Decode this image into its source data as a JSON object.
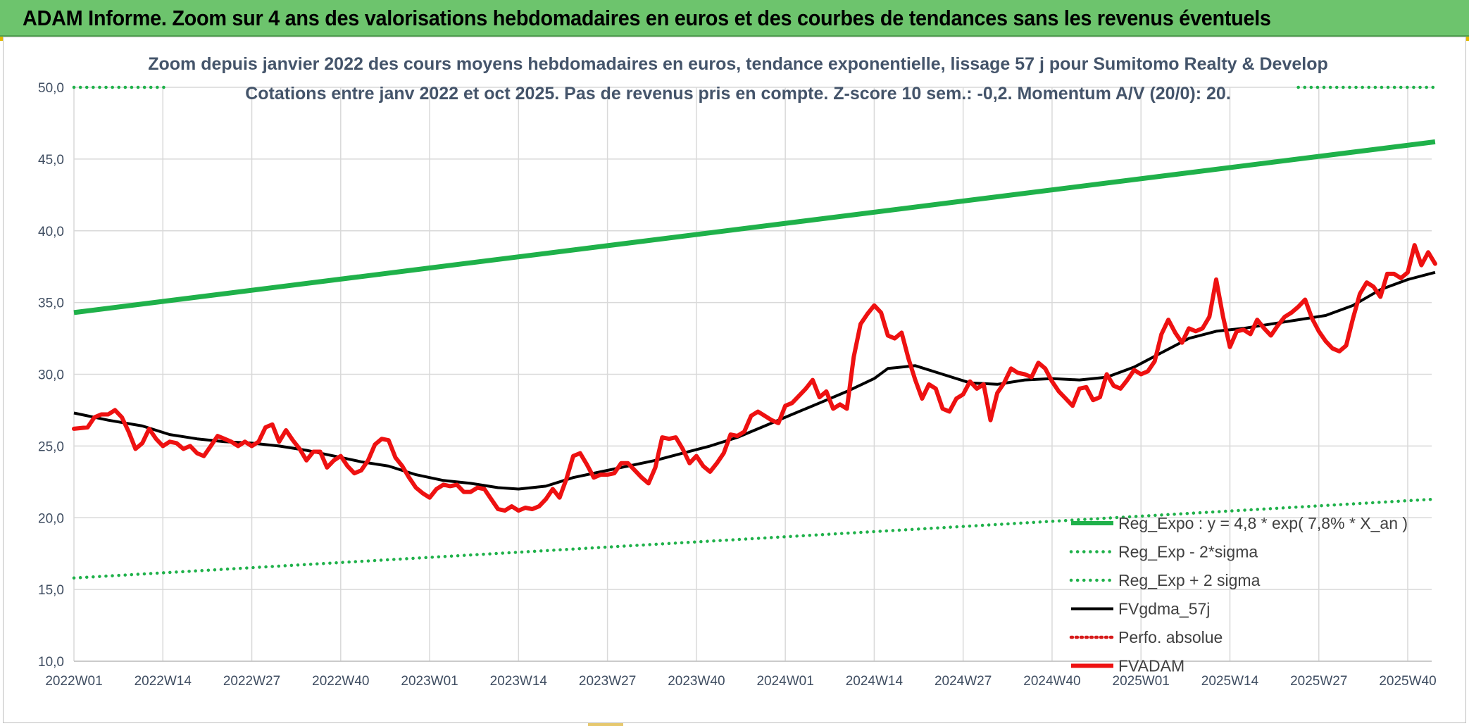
{
  "header": {
    "title": "ADAM Informe. Zoom sur 4 ans des valorisations hebdomadaires en euros et des courbes de tendances sans les revenus éventuels"
  },
  "colors": {
    "header_bg": "#6dc46d",
    "trend": "#1fb14a",
    "fvgdma": "#000000",
    "fvadam": "#ee1111",
    "perfo": "#d61a1a",
    "axis_text": "#3f4d61",
    "title_text": "#44546a"
  },
  "chart_data": {
    "type": "line",
    "title_line1": "Zoom depuis janvier 2022 des cours moyens hebdomadaires en euros, tendance exponentielle, lissage 57 j pour Sumitomo Realty & Develop",
    "title_line2": "Cotations entre janv 2022 et oct 2025. Pas de revenus pris en compte. Z-score 10 sem.: -0,2. Momentum A/V (20/0): 20.",
    "x_tick_labels": [
      "2022W01",
      "2022W14",
      "2022W27",
      "2022W40",
      "2023W01",
      "2023W14",
      "2023W27",
      "2023W40",
      "2024W01",
      "2024W14",
      "2024W27",
      "2024W40",
      "2025W01",
      "2025W14",
      "2025W27",
      "2025W40"
    ],
    "x_range": [
      0,
      200
    ],
    "x_ticks": [
      0,
      13,
      26,
      39,
      52,
      65,
      78,
      91,
      104,
      117,
      130,
      143,
      156,
      169,
      182,
      195
    ],
    "ylim": [
      10,
      50
    ],
    "y_ticks": [
      10,
      15,
      20,
      25,
      30,
      35,
      40,
      45,
      50
    ],
    "y_tick_labels": [
      "10,0",
      "15,0",
      "20,0",
      "25,0",
      "30,0",
      "35,0",
      "40,0",
      "45,0",
      "50,0"
    ],
    "legend": [
      {
        "label": "Reg_Expo : y = 4,8 * exp( 7,8% *  X_an )",
        "style": "solid-thick",
        "color": "#1fb14a"
      },
      {
        "label": "Reg_Exp - 2*sigma",
        "style": "dotted",
        "color": "#1fb14a"
      },
      {
        "label": "Reg_Exp + 2 sigma",
        "style": "dotted",
        "color": "#1fb14a"
      },
      {
        "label": "FVgdma_57j",
        "style": "solid",
        "color": "#000000"
      },
      {
        "label": "Perfo. absolue",
        "style": "dotted",
        "color": "#d61a1a"
      },
      {
        "label": "FVADAM",
        "style": "solid-thick",
        "color": "#ee1111"
      }
    ],
    "series": [
      {
        "name": "Reg_Expo",
        "style": "solid-thick",
        "x": [
          0,
          199
        ],
        "y": [
          34.3,
          46.2
        ]
      },
      {
        "name": "Reg_Exp - 2*sigma",
        "style": "dotted",
        "x": [
          0,
          199
        ],
        "y": [
          15.8,
          21.3
        ]
      },
      {
        "name": "Reg_Exp + 2 sigma (visible segment 1)",
        "style": "dotted",
        "x": [
          0,
          14
        ],
        "y": [
          50.0,
          50.0
        ]
      },
      {
        "name": "Reg_Exp + 2 sigma (visible segment 2)",
        "style": "dotted",
        "x": [
          179,
          199
        ],
        "y": [
          50.0,
          50.0
        ]
      },
      {
        "name": "FVgdma_57j",
        "style": "solid",
        "x": [
          0,
          5,
          10,
          14,
          18,
          22,
          26,
          30,
          34,
          38,
          42,
          46,
          50,
          54,
          58,
          62,
          65,
          69,
          73,
          77,
          81,
          85,
          89,
          93,
          97,
          101,
          105,
          109,
          113,
          117,
          119,
          123,
          127,
          131,
          135,
          139,
          143,
          147,
          151,
          155,
          159,
          163,
          167,
          171,
          175,
          179,
          183,
          187,
          191,
          195,
          199
        ],
        "y": [
          27.3,
          26.8,
          26.4,
          25.8,
          25.5,
          25.3,
          25.2,
          25.0,
          24.7,
          24.3,
          23.9,
          23.6,
          23.0,
          22.6,
          22.4,
          22.1,
          22.0,
          22.2,
          22.8,
          23.2,
          23.6,
          24.0,
          24.5,
          25.0,
          25.6,
          26.4,
          27.2,
          28.0,
          28.8,
          29.7,
          30.4,
          30.6,
          30.0,
          29.4,
          29.3,
          29.6,
          29.7,
          29.6,
          29.8,
          30.5,
          31.5,
          32.5,
          33.0,
          33.2,
          33.5,
          33.8,
          34.1,
          34.8,
          35.9,
          36.6,
          37.1
        ]
      },
      {
        "name": "FVADAM",
        "style": "solid-thick",
        "x": [
          0,
          2,
          3,
          4,
          5,
          6,
          7,
          8,
          9,
          10,
          11,
          12,
          13,
          14,
          15,
          16,
          17,
          18,
          19,
          20,
          21,
          22,
          23,
          24,
          25,
          26,
          27,
          28,
          29,
          30,
          31,
          32,
          33,
          34,
          35,
          36,
          37,
          38,
          39,
          40,
          41,
          42,
          43,
          44,
          45,
          46,
          47,
          48,
          49,
          50,
          51,
          52,
          53,
          54,
          55,
          56,
          57,
          58,
          59,
          60,
          61,
          62,
          63,
          64,
          65,
          66,
          67,
          68,
          69,
          70,
          71,
          72,
          73,
          74,
          75,
          76,
          77,
          78,
          79,
          80,
          81,
          82,
          83,
          84,
          85,
          86,
          87,
          88,
          89,
          90,
          91,
          92,
          93,
          94,
          95,
          96,
          97,
          98,
          99,
          100,
          101,
          102,
          103,
          104,
          105,
          106,
          107,
          108,
          109,
          110,
          111,
          112,
          113,
          114,
          115,
          116,
          117,
          118,
          119,
          120,
          121,
          122,
          123,
          124,
          125,
          126,
          127,
          128,
          129,
          130,
          131,
          132,
          133,
          134,
          135,
          136,
          137,
          138,
          139,
          140,
          141,
          142,
          143,
          144,
          145,
          146,
          147,
          148,
          149,
          150,
          151,
          152,
          153,
          154,
          155,
          156,
          157,
          158,
          159,
          160,
          161,
          162,
          163,
          164,
          165,
          166,
          167,
          168,
          169,
          170,
          171,
          172,
          173,
          174,
          175,
          176,
          177,
          178,
          179,
          180,
          181,
          182,
          183,
          184,
          185,
          186,
          187,
          188,
          189,
          190,
          191,
          192,
          193,
          194,
          195,
          196,
          197,
          198,
          199
        ],
        "y": [
          26.2,
          26.3,
          27.0,
          27.2,
          27.2,
          27.5,
          27.0,
          26.0,
          24.8,
          25.2,
          26.2,
          25.5,
          25.0,
          25.3,
          25.2,
          24.8,
          25.0,
          24.5,
          24.3,
          25.0,
          25.7,
          25.5,
          25.3,
          25.0,
          25.3,
          25.0,
          25.3,
          26.3,
          26.5,
          25.3,
          26.1,
          25.4,
          24.8,
          24.0,
          24.6,
          24.6,
          23.5,
          24.0,
          24.3,
          23.6,
          23.1,
          23.3,
          24.0,
          25.1,
          25.5,
          25.4,
          24.2,
          23.6,
          22.8,
          22.1,
          21.7,
          21.4,
          22.0,
          22.3,
          22.2,
          22.3,
          21.8,
          21.8,
          22.1,
          22.0,
          21.3,
          20.6,
          20.5,
          20.8,
          20.5,
          20.7,
          20.6,
          20.8,
          21.3,
          22.0,
          21.4,
          22.7,
          24.3,
          24.5,
          23.7,
          22.8,
          23.0,
          23.0,
          23.1,
          23.8,
          23.8,
          23.3,
          22.8,
          22.4,
          23.5,
          25.6,
          25.5,
          25.6,
          24.8,
          23.8,
          24.3,
          23.6,
          23.2,
          23.8,
          24.5,
          25.8,
          25.7,
          26.0,
          27.1,
          27.4,
          27.1,
          26.8,
          26.6,
          27.8,
          28.0,
          28.5,
          29.0,
          29.6,
          28.4,
          28.8,
          27.6,
          27.9,
          27.6,
          31.2,
          33.5,
          34.2,
          34.8,
          34.3,
          32.7,
          32.5,
          32.9,
          31.1,
          29.6,
          28.3,
          29.3,
          29.0,
          27.6,
          27.4,
          28.3,
          28.6,
          29.5,
          29.0,
          29.3,
          26.8,
          28.7,
          29.4,
          30.4,
          30.1,
          30.0,
          29.8,
          30.8,
          30.4,
          29.5,
          28.8,
          28.3,
          27.8,
          29.0,
          29.1,
          28.2,
          28.4,
          30.0,
          29.2,
          29.0,
          29.6,
          30.3,
          30.0,
          30.2,
          30.9,
          32.8,
          33.8,
          32.9,
          32.2,
          33.2,
          33.0,
          33.2,
          34.0,
          36.6,
          34.0,
          31.9,
          33.0,
          33.1,
          32.8,
          33.8,
          33.2,
          32.7,
          33.4,
          34.0,
          34.3,
          34.7,
          35.2,
          33.9,
          33.0,
          32.3,
          31.8,
          31.6,
          32.0,
          33.9,
          35.6,
          36.4,
          36.1,
          35.4,
          37.0,
          37.0,
          36.7,
          37.1,
          39.0,
          37.6,
          38.5,
          37.7
        ]
      },
      {
        "name": "Perfo. absolue",
        "style": "dotted",
        "x": [],
        "y": []
      }
    ]
  }
}
